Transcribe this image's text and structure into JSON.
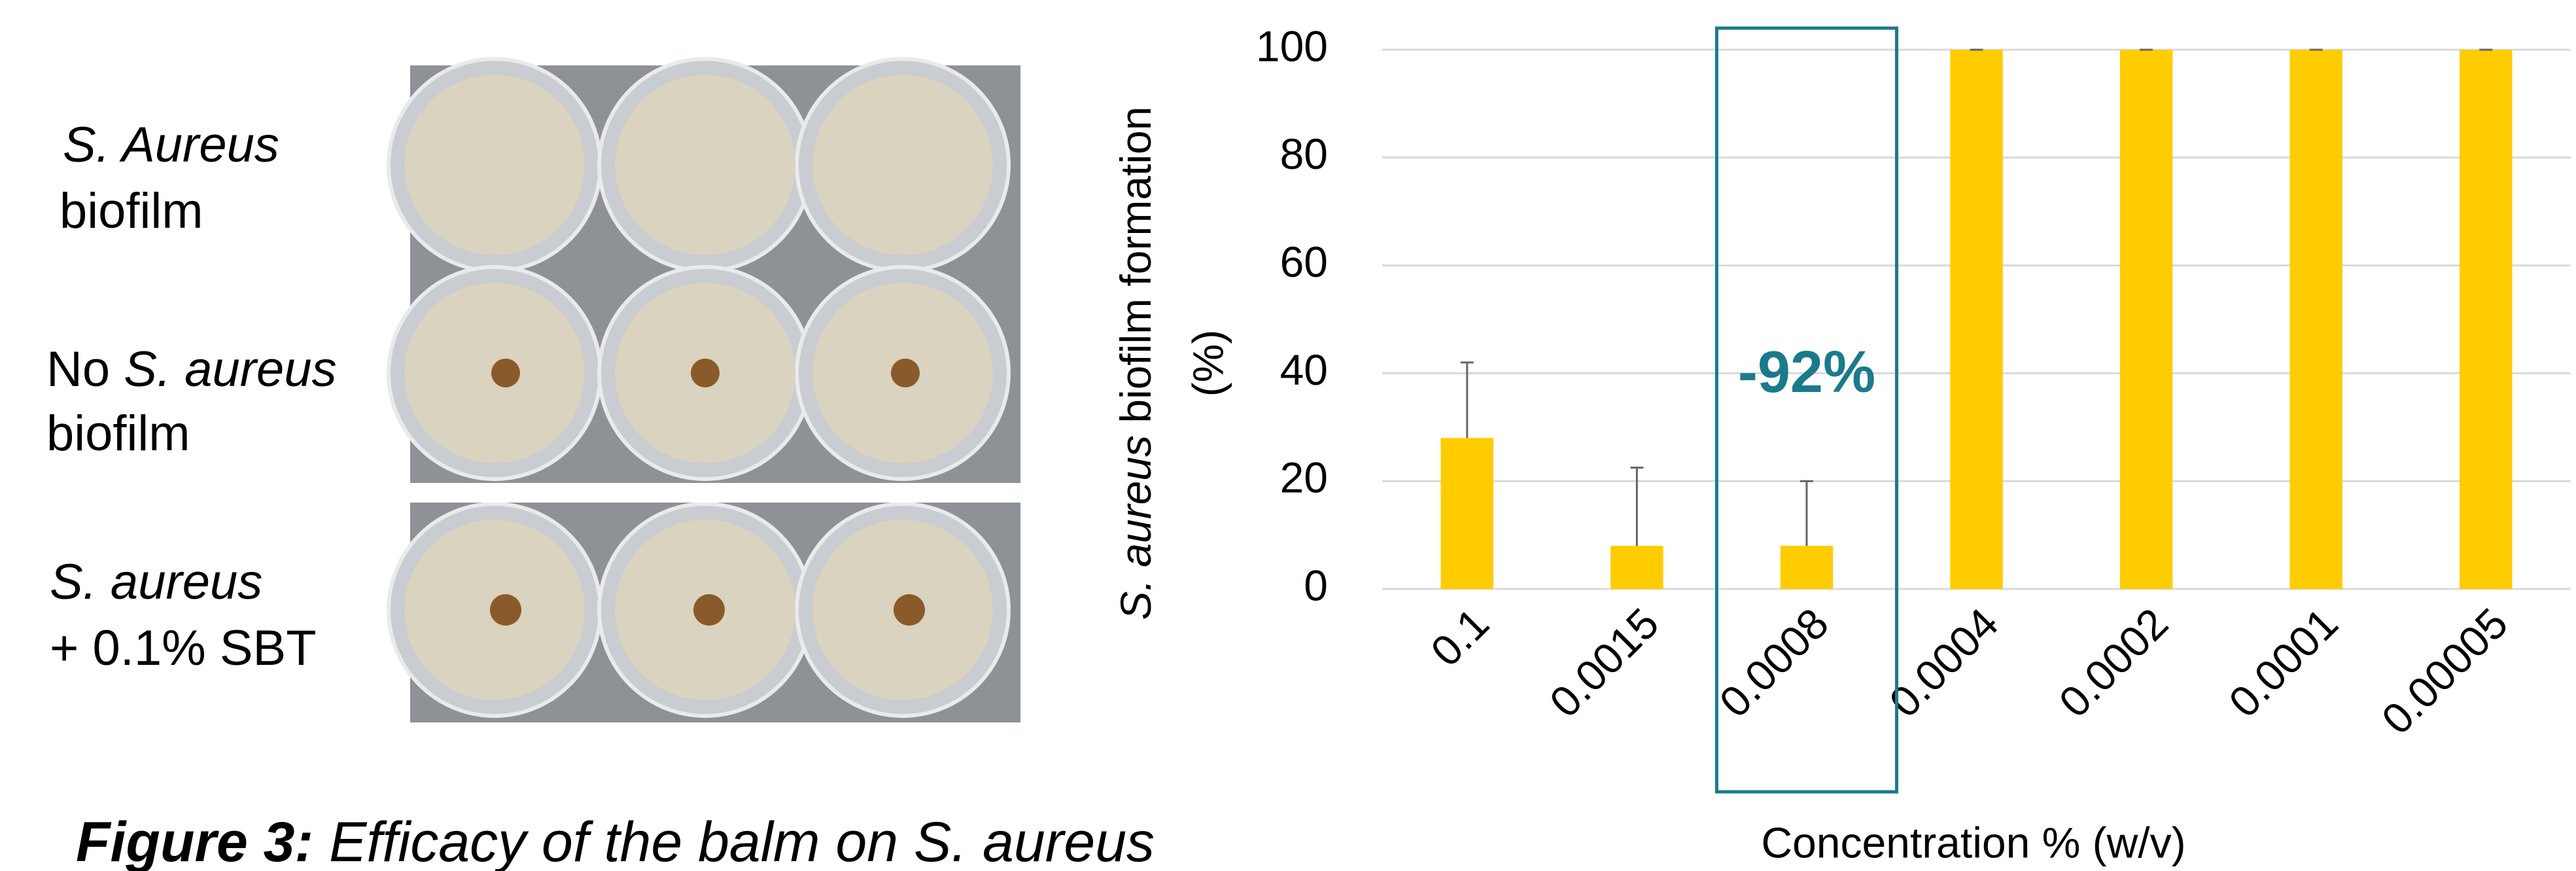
{
  "figure": {
    "labels": [
      {
        "lines": [
          "S.  Aureus",
          "biofilm"
        ]
      },
      {
        "lines": [
          "No",
          "S. aureus",
          "biofilm"
        ]
      },
      {
        "lines": [
          "S. aureus",
          "+ 0.1% SBT"
        ]
      }
    ],
    "caption": {
      "label": "Figure 3:",
      "text": "Efficacy of the balm on S. aureus"
    }
  },
  "chart_data": {
    "type": "bar",
    "ylabel": {
      "italic": "S. aureus",
      "rest": " biofilm formation",
      "unit": "(%)"
    },
    "xlabel": "Concentration % (w/v)",
    "categories": [
      "0.1",
      "0.0015",
      "0.0008",
      "0.0004",
      "0.0002",
      "0.0001",
      "0.00005"
    ],
    "values": [
      28,
      8,
      8,
      100,
      100,
      100,
      100
    ],
    "errors": [
      14,
      14.5,
      12,
      0,
      0,
      0,
      0
    ],
    "color": "#ffcc00",
    "ylim": [
      0,
      100
    ],
    "yticks": [
      0,
      20,
      40,
      60,
      80,
      100
    ],
    "grid": true,
    "annotation": {
      "text": "-92%",
      "category": 2,
      "color": "#1a7a8c"
    }
  }
}
